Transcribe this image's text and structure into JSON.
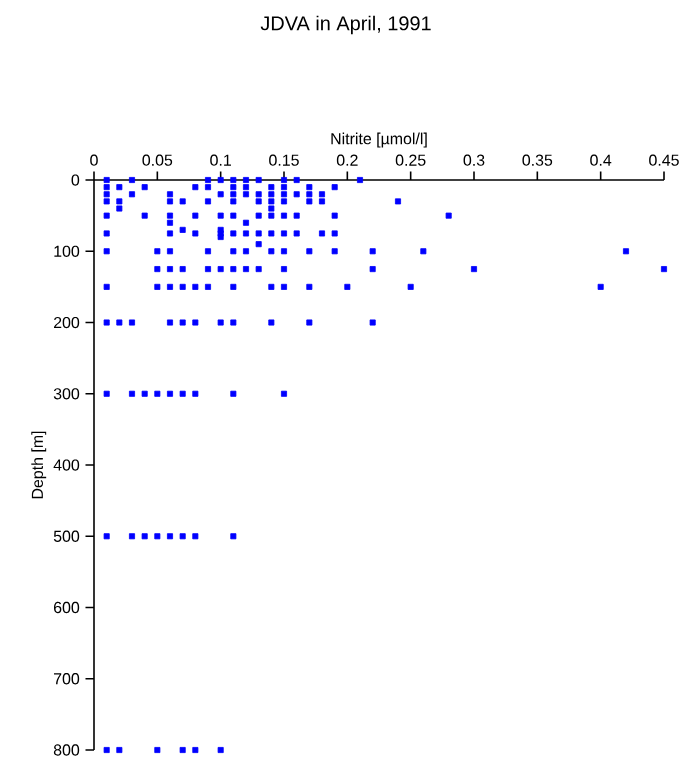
{
  "chart_data": {
    "type": "scatter",
    "title": "JDVA in April, 1991",
    "xlabel": "Nitrite [µmol/l]",
    "ylabel": "Depth [m]",
    "x": [
      0.01,
      0.03,
      0.09,
      0.1,
      0.11,
      0.12,
      0.13,
      0.15,
      0.16,
      0.21,
      0.01,
      0.02,
      0.04,
      0.08,
      0.09,
      0.11,
      0.12,
      0.14,
      0.15,
      0.17,
      0.19,
      0.01,
      0.03,
      0.06,
      0.1,
      0.11,
      0.12,
      0.13,
      0.14,
      0.15,
      0.16,
      0.17,
      0.18,
      0.01,
      0.02,
      0.06,
      0.07,
      0.09,
      0.11,
      0.13,
      0.14,
      0.15,
      0.17,
      0.18,
      0.24,
      0.02,
      0.14,
      0.01,
      0.04,
      0.06,
      0.08,
      0.1,
      0.11,
      0.13,
      0.14,
      0.15,
      0.16,
      0.19,
      0.28,
      0.06,
      0.12,
      0.07,
      0.1,
      0.01,
      0.06,
      0.08,
      0.1,
      0.11,
      0.12,
      0.13,
      0.14,
      0.15,
      0.16,
      0.18,
      0.19,
      0.1,
      0.13,
      0.01,
      0.05,
      0.06,
      0.09,
      0.11,
      0.12,
      0.14,
      0.15,
      0.17,
      0.19,
      0.22,
      0.26,
      0.42,
      0.05,
      0.06,
      0.07,
      0.09,
      0.1,
      0.11,
      0.12,
      0.13,
      0.15,
      0.22,
      0.3,
      0.45,
      0.01,
      0.05,
      0.06,
      0.07,
      0.08,
      0.09,
      0.11,
      0.14,
      0.15,
      0.17,
      0.2,
      0.25,
      0.4,
      0.01,
      0.02,
      0.03,
      0.06,
      0.07,
      0.08,
      0.1,
      0.11,
      0.14,
      0.17,
      0.22,
      0.01,
      0.03,
      0.04,
      0.05,
      0.06,
      0.07,
      0.08,
      0.11,
      0.15,
      0.01,
      0.03,
      0.04,
      0.05,
      0.06,
      0.07,
      0.08,
      0.11,
      0.01,
      0.02,
      0.05,
      0.07,
      0.08,
      0.1
    ],
    "values": [
      0,
      0,
      0,
      0,
      0,
      0,
      0,
      0,
      0,
      0,
      10,
      10,
      10,
      10,
      10,
      10,
      10,
      10,
      10,
      10,
      10,
      20,
      20,
      20,
      20,
      20,
      20,
      20,
      20,
      20,
      20,
      20,
      20,
      30,
      30,
      30,
      30,
      30,
      30,
      30,
      30,
      30,
      30,
      30,
      30,
      40,
      40,
      50,
      50,
      50,
      50,
      50,
      50,
      50,
      50,
      50,
      50,
      50,
      50,
      60,
      60,
      70,
      70,
      75,
      75,
      75,
      75,
      75,
      75,
      75,
      75,
      75,
      75,
      75,
      75,
      80,
      90,
      100,
      100,
      100,
      100,
      100,
      100,
      100,
      100,
      100,
      100,
      100,
      100,
      100,
      125,
      125,
      125,
      125,
      125,
      125,
      125,
      125,
      125,
      125,
      125,
      125,
      150,
      150,
      150,
      150,
      150,
      150,
      150,
      150,
      150,
      150,
      150,
      150,
      150,
      200,
      200,
      200,
      200,
      200,
      200,
      200,
      200,
      200,
      200,
      200,
      300,
      300,
      300,
      300,
      300,
      300,
      300,
      300,
      300,
      500,
      500,
      500,
      500,
      500,
      500,
      500,
      500,
      800,
      800,
      800,
      800,
      800,
      800
    ],
    "color": "#0000ff",
    "marker": "square",
    "xlim": [
      0,
      0.45
    ],
    "xticks": [
      0,
      0.05,
      0.1,
      0.15,
      0.2,
      0.25,
      0.3,
      0.35,
      0.4,
      0.45
    ],
    "ylim": [
      800,
      0
    ],
    "yticks": [
      0,
      100,
      200,
      300,
      400,
      500,
      600,
      700,
      800
    ]
  }
}
